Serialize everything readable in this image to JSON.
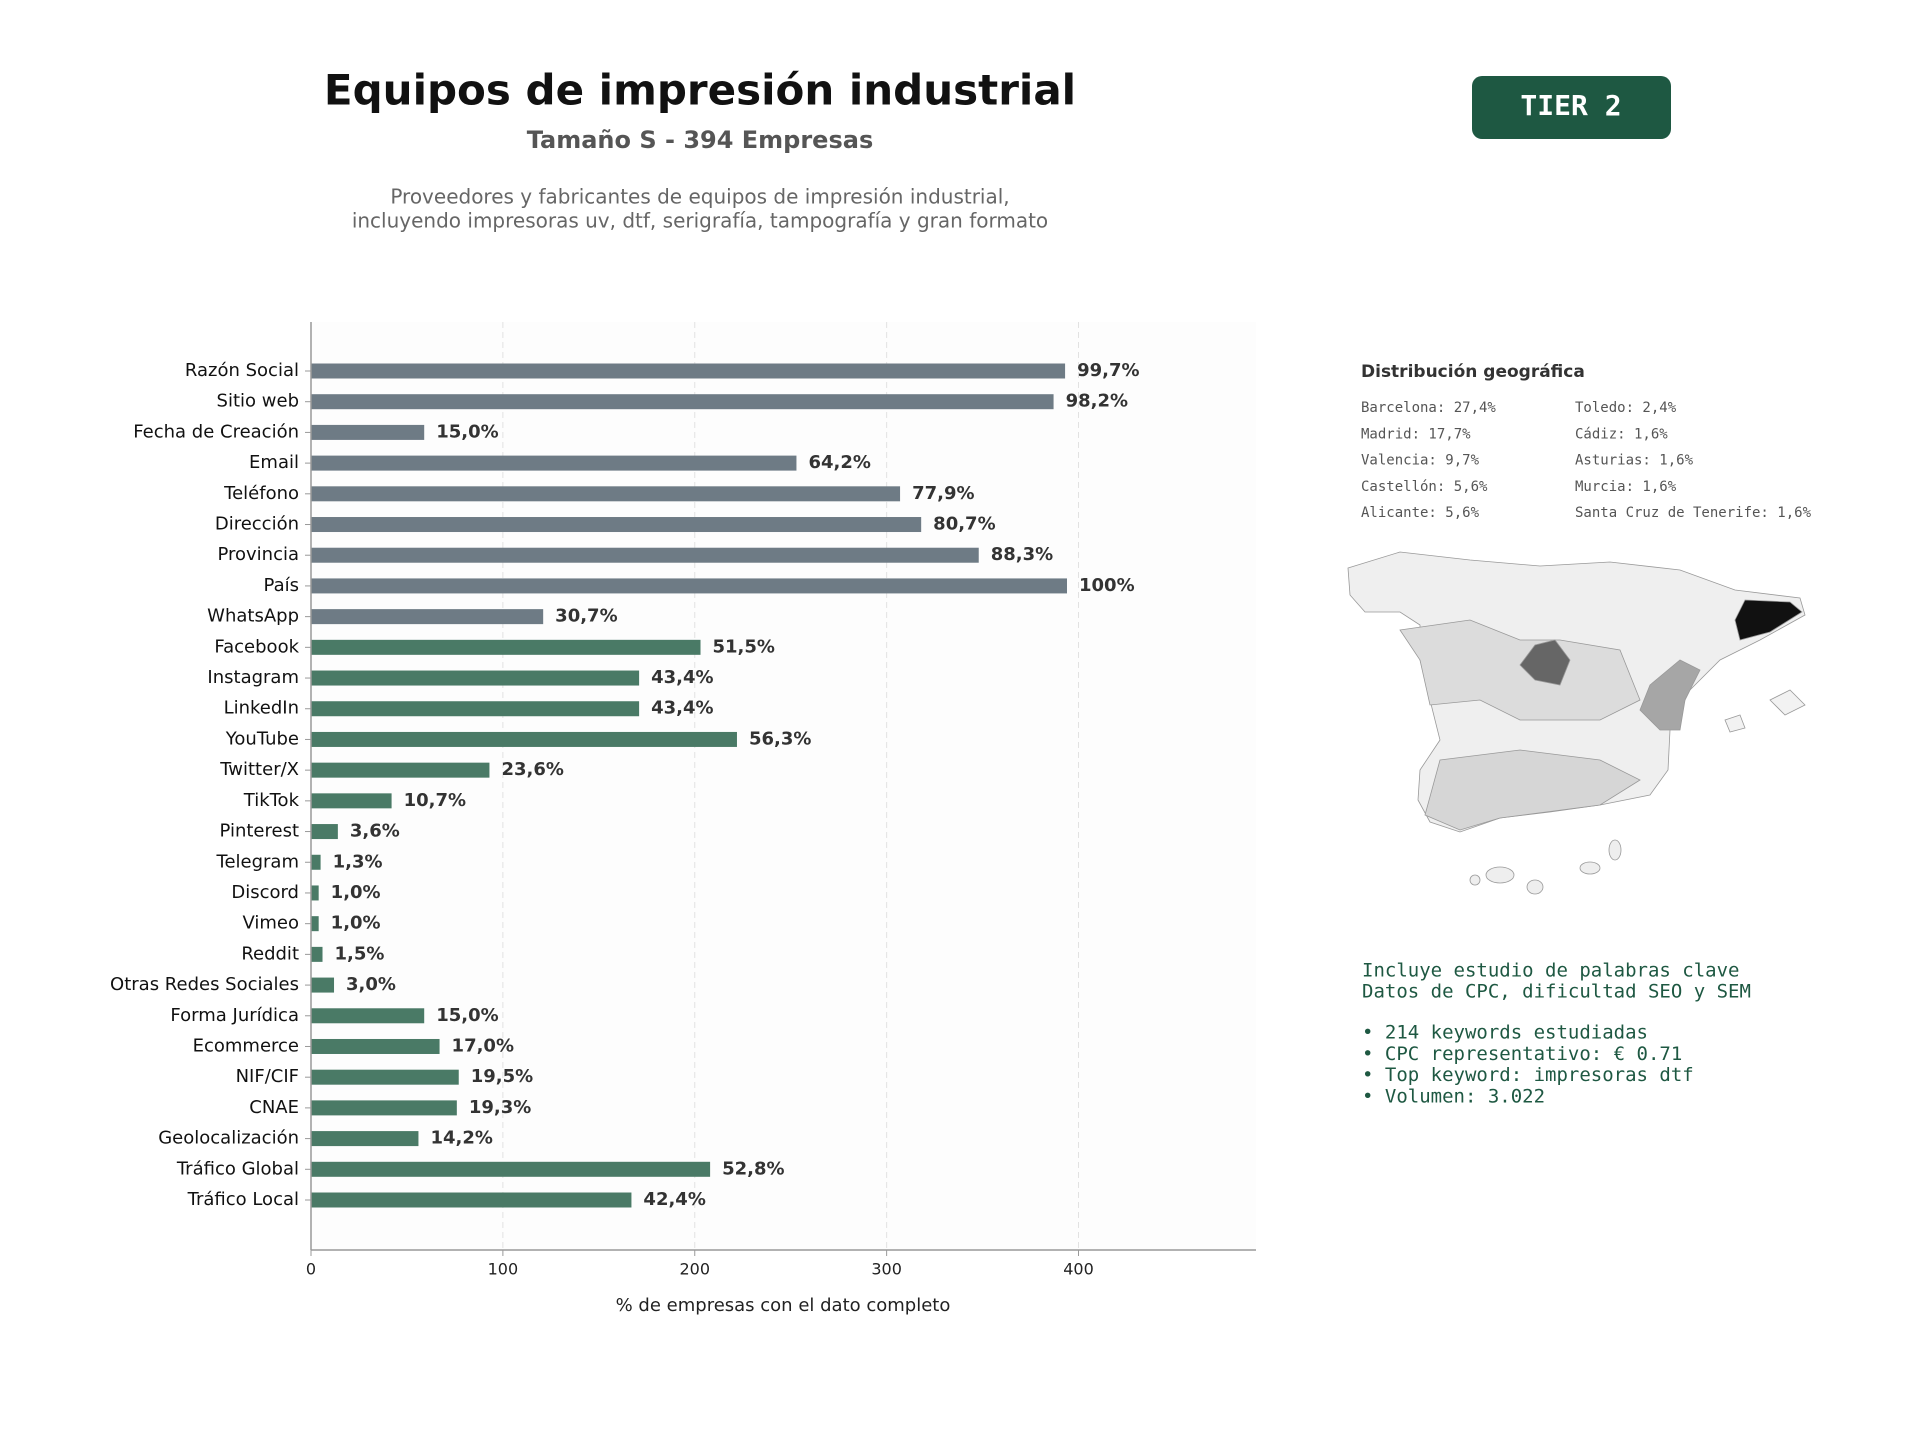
{
  "chart_data": {
    "type": "bar",
    "orientation": "horizontal",
    "title": "Equipos de impresión industrial",
    "subtitle": "Tamaño S - 394 Empresas",
    "description": [
      "Proveedores y fabricantes de equipos de impresión industrial,",
      "incluyendo impresoras uv, dtf, serigrafía, tampografía y gran formato"
    ],
    "badge": "TIER 2",
    "xlabel": "% de empresas con el dato completo",
    "categories": [
      "Razón Social",
      "Sitio web",
      "Fecha de Creación",
      "Email",
      "Teléfono",
      "Dirección",
      "Provincia",
      "País",
      "WhatsApp",
      "Facebook",
      "Instagram",
      "LinkedIn",
      "YouTube",
      "Twitter/X",
      "TikTok",
      "Pinterest",
      "Telegram",
      "Discord",
      "Vimeo",
      "Reddit",
      "Otras Redes Sociales",
      "Forma Jurídica",
      "Ecommerce",
      "NIF/CIF",
      "CNAE",
      "Geolocalización",
      "Tráfico Global",
      "Tráfico Local"
    ],
    "values": [
      393,
      387,
      59,
      253,
      307,
      318,
      348,
      394,
      121,
      203,
      171,
      171,
      222,
      93,
      42,
      14,
      5,
      4,
      4,
      6,
      12,
      59,
      67,
      77,
      76,
      56,
      208,
      167
    ],
    "value_labels": [
      "99,7%",
      "98,2%",
      "15,0%",
      "64,2%",
      "77,9%",
      "80,7%",
      "88,3%",
      "100%",
      "30,7%",
      "51,5%",
      "43,4%",
      "43,4%",
      "56,3%",
      "23,6%",
      "10,7%",
      "3,6%",
      "1,3%",
      "1,0%",
      "1,0%",
      "1,5%",
      "3,0%",
      "15,0%",
      "17,0%",
      "19,5%",
      "19,3%",
      "14,2%",
      "52,8%",
      "42,4%"
    ],
    "colors": [
      "#6e7b85",
      "#6e7b85",
      "#6e7b85",
      "#6e7b85",
      "#6e7b85",
      "#6e7b85",
      "#6e7b85",
      "#6e7b85",
      "#6e7b85",
      "#4a7a66",
      "#4a7a66",
      "#4a7a66",
      "#4a7a66",
      "#4a7a66",
      "#4a7a66",
      "#4a7a66",
      "#4a7a66",
      "#4a7a66",
      "#4a7a66",
      "#4a7a66",
      "#4a7a66",
      "#4a7a66",
      "#4a7a66",
      "#4a7a66",
      "#4a7a66",
      "#4a7a66",
      "#4a7a66",
      "#4a7a66"
    ],
    "xlim": [
      0,
      492.5
    ],
    "xticks": [
      0,
      100,
      200,
      300,
      400
    ],
    "grid": true,
    "geo": {
      "title": "Distribución geográfica",
      "items": [
        "Barcelona: 27,4%",
        "Madrid: 17,7%",
        "Valencia: 9,7%",
        "Castellón: 5,6%",
        "Alicante: 5,6%",
        "Toledo: 2,4%",
        "Cádiz: 1,6%",
        "Asturias: 1,6%",
        "Murcia: 1,6%",
        "Santa Cruz de Tenerife: 1,6%"
      ]
    },
    "notes": [
      "Incluye estudio de palabras clave",
      "Datos de CPC, dificultad SEO y SEM"
    ],
    "bullets": [
      "• 214 keywords estudiadas",
      "• CPC representativo: € 0.71",
      "• Top keyword: impresoras dtf",
      "• Volumen: 3.022"
    ]
  }
}
